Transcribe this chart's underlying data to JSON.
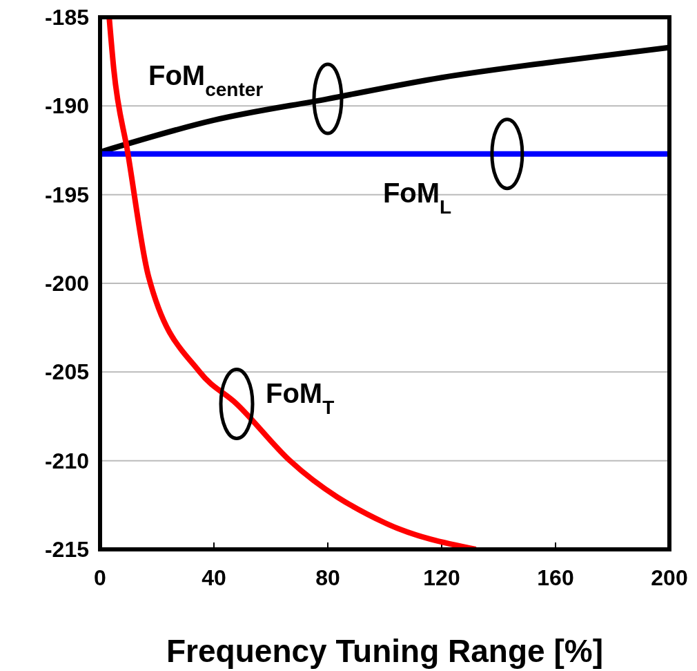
{
  "chart_data": {
    "type": "line",
    "xlabel": "Frequency Tuning Range [%]",
    "xlim": [
      0,
      200
    ],
    "xticks": [
      0,
      40,
      80,
      120,
      160,
      200
    ],
    "ylim": [
      -215,
      -185
    ],
    "yticks": [
      -185,
      -190,
      -195,
      -200,
      -205,
      -210,
      -215
    ],
    "grid": "y",
    "series": [
      {
        "name": "FoM$_{center}$",
        "color": "#000000",
        "x": [
          0,
          40,
          80,
          120,
          160,
          200
        ],
        "values": [
          -192.6,
          -190.8,
          -189.6,
          -188.4,
          -187.5,
          -186.7
        ]
      },
      {
        "name": "FoM$_{L}$",
        "color": "#0000ff",
        "x": [
          0,
          143,
          200
        ],
        "values": [
          -192.7,
          -192.7,
          -192.7
        ]
      },
      {
        "name": "FoM$_{T}$",
        "color": "#ff0000",
        "x": [
          3.2,
          4.8,
          9.7,
          17,
          35,
          48,
          66.7,
          100,
          132
        ],
        "values": [
          -185,
          -187.9,
          -192.6,
          -199.6,
          -205,
          -206.8,
          -210,
          -213.5,
          -215
        ]
      }
    ]
  }
}
